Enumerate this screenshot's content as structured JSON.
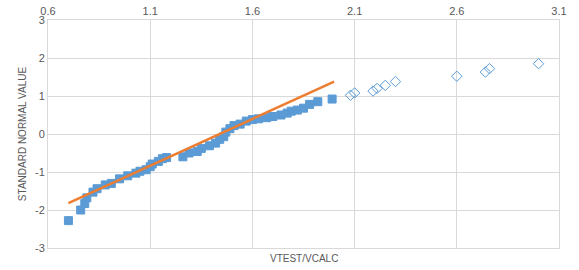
{
  "chart_data": {
    "type": "scatter",
    "x_label": "VTEST/VCALC",
    "y_label": "STANDARD NORMAL VALUE",
    "xlim": [
      0.6,
      3.1
    ],
    "xticks": [
      0.6,
      1.1,
      1.6,
      2.1,
      2.6,
      3.1
    ],
    "ylim": [
      -3,
      3
    ],
    "yticks": [
      -3,
      -2,
      -1,
      0,
      1,
      2,
      3
    ],
    "grid": true,
    "series": [
      {
        "type": "scatter",
        "marker": "square",
        "color": "#5b9bd5",
        "x": [
          0.7,
          0.76,
          0.78,
          0.79,
          0.82,
          0.84,
          0.88,
          0.91,
          0.95,
          0.99,
          1.03,
          1.05,
          1.08,
          1.1,
          1.11,
          1.14,
          1.16,
          1.18,
          1.26,
          1.29,
          1.33,
          1.35,
          1.39,
          1.42,
          1.44,
          1.46,
          1.47,
          1.49,
          1.51,
          1.54,
          1.57,
          1.6,
          1.63,
          1.67,
          1.7,
          1.74,
          1.77,
          1.79,
          1.82,
          1.85,
          1.88,
          1.92,
          1.99
        ],
        "values": [
          -2.28,
          -2.0,
          -1.83,
          -1.68,
          -1.53,
          -1.44,
          -1.34,
          -1.3,
          -1.18,
          -1.1,
          -1.03,
          -0.98,
          -0.94,
          -0.86,
          -0.79,
          -0.72,
          -0.65,
          -0.62,
          -0.6,
          -0.5,
          -0.46,
          -0.38,
          -0.31,
          -0.24,
          -0.14,
          -0.07,
          0.05,
          0.14,
          0.22,
          0.26,
          0.34,
          0.38,
          0.4,
          0.43,
          0.46,
          0.5,
          0.55,
          0.6,
          0.63,
          0.68,
          0.78,
          0.85,
          0.92
        ]
      },
      {
        "type": "scatter",
        "marker": "diamond-open",
        "color": "#5b9bd5",
        "x": [
          2.08,
          2.1,
          2.19,
          2.21,
          2.25,
          2.3,
          2.6,
          2.74,
          2.76,
          3.0
        ],
        "values": [
          1.02,
          1.08,
          1.13,
          1.2,
          1.28,
          1.38,
          1.52,
          1.63,
          1.72,
          1.85
        ]
      },
      {
        "type": "line",
        "color": "#ed7d31",
        "x": [
          0.7,
          2.0
        ],
        "values": [
          -1.82,
          1.38
        ]
      }
    ]
  }
}
